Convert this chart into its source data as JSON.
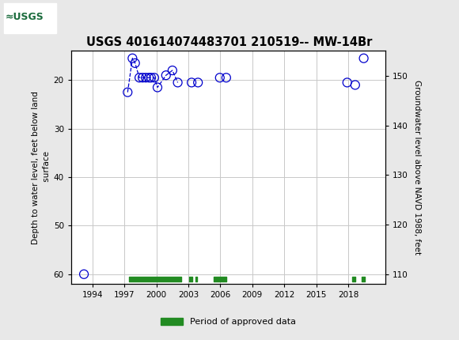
{
  "title": "USGS 401614074483701 210519-- MW-14Br",
  "ylabel_left": "Depth to water level, feet below land\n surface",
  "ylabel_right": "Groundwater level above NAVD 1988, feet",
  "xlim": [
    1992.0,
    2021.5
  ],
  "ylim_left": [
    62,
    14
  ],
  "ylim_right": [
    108,
    155
  ],
  "yticks_left": [
    20,
    30,
    40,
    50,
    60
  ],
  "yticks_right": [
    110,
    120,
    130,
    140,
    150
  ],
  "xticks": [
    1994,
    1997,
    2000,
    2003,
    2006,
    2009,
    2012,
    2015,
    2018
  ],
  "background_color": "#e8e8e8",
  "plot_bg_color": "#ffffff",
  "header_color": "#1a6b3c",
  "data_points": {
    "x": [
      1993.2,
      1997.3,
      1997.75,
      1998.0,
      1998.4,
      1998.7,
      1999.0,
      1999.3,
      1999.5,
      1999.8,
      2000.1,
      2000.9,
      2001.5,
      2002.0,
      2003.3,
      2003.9,
      2005.95,
      2006.55,
      2017.9,
      2018.65,
      2019.45
    ],
    "y": [
      60.0,
      22.5,
      15.5,
      16.5,
      19.5,
      19.5,
      19.5,
      19.5,
      19.5,
      19.5,
      21.5,
      19.0,
      18.0,
      20.5,
      20.5,
      20.5,
      19.5,
      19.5,
      20.5,
      21.0,
      15.5
    ]
  },
  "connected_segment_indices": [
    1,
    2,
    3,
    4,
    5,
    6,
    7,
    8,
    9,
    10,
    11,
    12,
    13
  ],
  "green_bars": [
    {
      "x_start": 1997.4,
      "x_end": 2002.3
    },
    {
      "x_start": 2003.1,
      "x_end": 2003.4
    },
    {
      "x_start": 2003.65,
      "x_end": 2003.85
    },
    {
      "x_start": 2005.4,
      "x_end": 2006.55
    },
    {
      "x_start": 2018.4,
      "x_end": 2018.65
    },
    {
      "x_start": 2019.25,
      "x_end": 2019.55
    }
  ],
  "marker_color": "#0000cc",
  "marker_size": 5,
  "line_color": "#0000cc",
  "line_style": "--",
  "green_bar_color": "#228B22",
  "grid_color": "#c8c8c8"
}
